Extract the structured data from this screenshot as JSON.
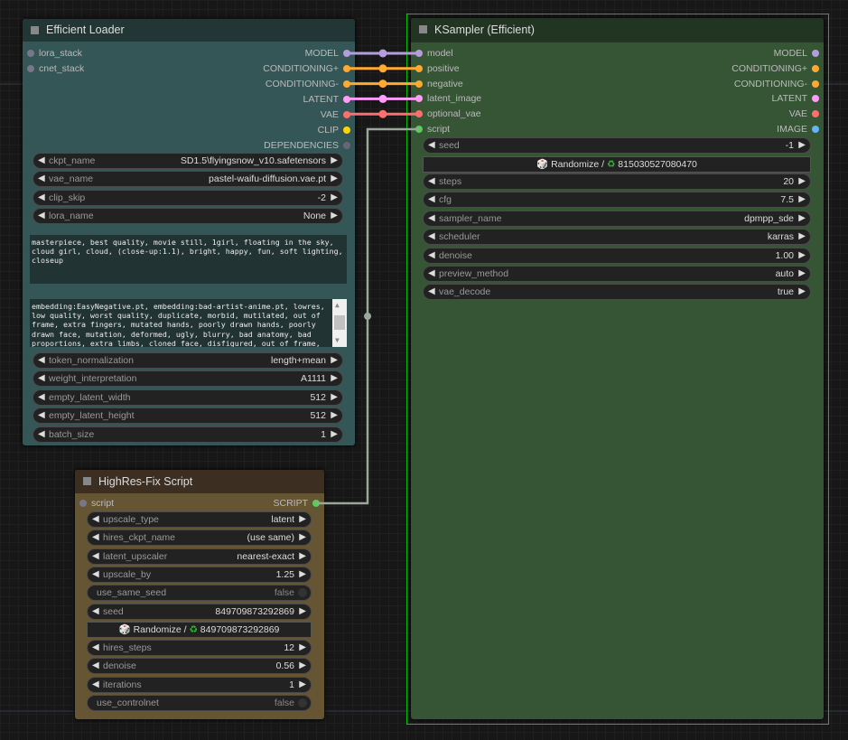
{
  "colors": {
    "model": "#b39ddb",
    "conditioning": "#ffa931",
    "latent": "#ff9cf9",
    "vae": "#ff6e6e",
    "clip": "#ffd500",
    "dependencies": "#666677",
    "image": "#64b5f6",
    "script": "#5ec95e",
    "unlinked": "#777788",
    "selection": "#00cc00"
  },
  "loader": {
    "title": "Efficient Loader",
    "inputs": [
      {
        "label": "lora_stack",
        "type": "unlinked"
      },
      {
        "label": "cnet_stack",
        "type": "unlinked"
      }
    ],
    "outputs": [
      {
        "label": "MODEL",
        "type": "model"
      },
      {
        "label": "CONDITIONING+",
        "type": "conditioning"
      },
      {
        "label": "CONDITIONING-",
        "type": "conditioning"
      },
      {
        "label": "LATENT",
        "type": "latent"
      },
      {
        "label": "VAE",
        "type": "vae"
      },
      {
        "label": "CLIP",
        "type": "clip"
      },
      {
        "label": "DEPENDENCIES",
        "type": "dependencies"
      }
    ],
    "widgets_top": [
      {
        "label": "ckpt_name",
        "value": "SD1.5\\flyingsnow_v10.safetensors"
      },
      {
        "label": "vae_name",
        "value": "pastel-waifu-diffusion.vae.pt"
      },
      {
        "label": "clip_skip",
        "value": "-2"
      },
      {
        "label": "lora_name",
        "value": "None"
      }
    ],
    "positive_prompt": "masterpiece, best quality, movie still, 1girl, floating in the sky, cloud girl, cloud, (close-up:1.1), bright, happy, fun, soft lighting, closeup",
    "negative_prompt": "embedding:EasyNegative.pt, embedding:bad-artist-anime.pt, lowres, low quality, worst quality, duplicate, morbid, mutilated, out of frame, extra fingers, mutated hands, poorly drawn hands, poorly drawn face, mutation, deformed, ugly, blurry, bad anatomy, bad proportions, extra limbs, cloned face, disfigured, out of frame, ugly, extra limbs, bad anatomy, gross proportions, malformed limbs, missing arms, missing legs",
    "widgets_bottom": [
      {
        "label": "token_normalization",
        "value": "length+mean"
      },
      {
        "label": "weight_interpretation",
        "value": "A1111"
      },
      {
        "label": "empty_latent_width",
        "value": "512"
      },
      {
        "label": "empty_latent_height",
        "value": "512"
      },
      {
        "label": "batch_size",
        "value": "1"
      }
    ]
  },
  "ksampler": {
    "title": "KSampler (Efficient)",
    "inputs": [
      {
        "label": "model",
        "type": "model"
      },
      {
        "label": "positive",
        "type": "conditioning"
      },
      {
        "label": "negative",
        "type": "conditioning"
      },
      {
        "label": "latent_image",
        "type": "latent"
      },
      {
        "label": "optional_vae",
        "type": "vae"
      },
      {
        "label": "script",
        "type": "script"
      }
    ],
    "outputs": [
      {
        "label": "MODEL",
        "type": "model"
      },
      {
        "label": "CONDITIONING+",
        "type": "conditioning"
      },
      {
        "label": "CONDITIONING-",
        "type": "conditioning"
      },
      {
        "label": "LATENT",
        "type": "latent"
      },
      {
        "label": "VAE",
        "type": "vae"
      },
      {
        "label": "IMAGE",
        "type": "image"
      }
    ],
    "seed": {
      "label": "seed",
      "value": "-1"
    },
    "randomize": {
      "label": "Randomize / ",
      "last_seed": "815030527080470"
    },
    "widgets": [
      {
        "label": "steps",
        "value": "20"
      },
      {
        "label": "cfg",
        "value": "7.5"
      },
      {
        "label": "sampler_name",
        "value": "dpmpp_sde"
      },
      {
        "label": "scheduler",
        "value": "karras"
      },
      {
        "label": "denoise",
        "value": "1.00"
      },
      {
        "label": "preview_method",
        "value": "auto"
      },
      {
        "label": "vae_decode",
        "value": "true"
      }
    ]
  },
  "hires": {
    "title": "HighRes-Fix Script",
    "input": {
      "label": "script",
      "type": "unlinked"
    },
    "output": {
      "label": "SCRIPT",
      "type": "script"
    },
    "widgets_top": [
      {
        "label": "upscale_type",
        "value": "latent"
      },
      {
        "label": "hires_ckpt_name",
        "value": "(use same)"
      },
      {
        "label": "latent_upscaler",
        "value": "nearest-exact"
      },
      {
        "label": "upscale_by",
        "value": "1.25"
      }
    ],
    "use_same_seed": {
      "label": "use_same_seed",
      "value": "false"
    },
    "seed": {
      "label": "seed",
      "value": "849709873292869"
    },
    "randomize": {
      "label": "Randomize / ",
      "last_seed": "849709873292869"
    },
    "widgets_bottom": [
      {
        "label": "hires_steps",
        "value": "12"
      },
      {
        "label": "denoise",
        "value": "0.56"
      },
      {
        "label": "iterations",
        "value": "1"
      }
    ],
    "use_controlnet": {
      "label": "use_controlnet",
      "value": "false"
    }
  }
}
